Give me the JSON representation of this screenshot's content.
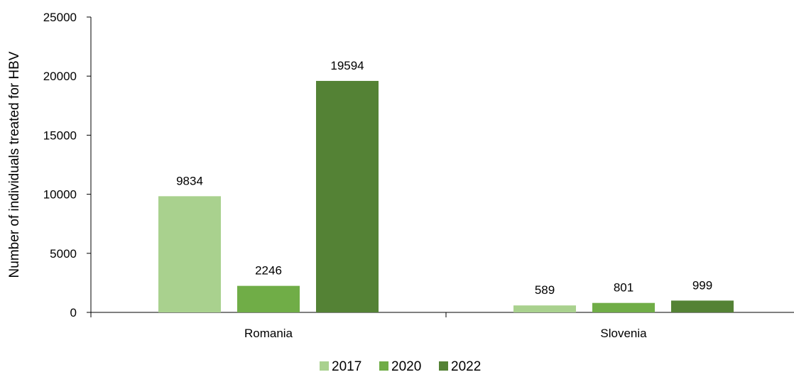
{
  "chart_data": {
    "type": "bar",
    "categories": [
      "Romania",
      "Slovenia"
    ],
    "series": [
      {
        "name": "2017",
        "values": [
          9834,
          589
        ],
        "color": "#a9d18e"
      },
      {
        "name": "2020",
        "values": [
          2246,
          801
        ],
        "color": "#70ad47"
      },
      {
        "name": "2022",
        "values": [
          19594,
          999
        ],
        "color": "#548235"
      }
    ],
    "data_labels": [
      [
        "9834",
        "589"
      ],
      [
        "2246",
        "801"
      ],
      [
        "19594",
        "999"
      ]
    ],
    "title": "",
    "xlabel": "",
    "ylabel": "Number of individuals treated for HBV",
    "ylim": [
      0,
      25000
    ],
    "yticks": [
      0,
      5000,
      10000,
      15000,
      20000,
      25000
    ],
    "grid": false,
    "legend": "bottom"
  }
}
